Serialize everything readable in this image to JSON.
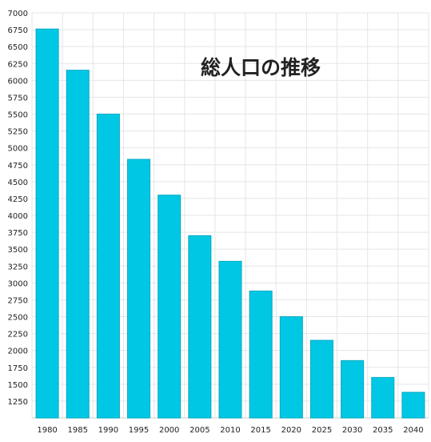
{
  "chart_data": {
    "type": "bar",
    "title": "総人口の推移",
    "xlabel": "",
    "ylabel": "",
    "categories": [
      "1980",
      "1985",
      "1990",
      "1995",
      "2000",
      "2005",
      "2010",
      "2015",
      "2020",
      "2025",
      "2030",
      "2035",
      "2040"
    ],
    "values": [
      6760,
      6150,
      5500,
      4830,
      4300,
      3700,
      3320,
      2880,
      2500,
      2150,
      1850,
      1600,
      1380
    ],
    "ylim": [
      1000,
      7000
    ],
    "yticks": [
      1250,
      1500,
      1750,
      2000,
      2250,
      2500,
      2750,
      3000,
      3250,
      3500,
      3750,
      4000,
      4250,
      4500,
      4750,
      5000,
      5250,
      5500,
      5750,
      6000,
      6250,
      6500,
      6750,
      7000
    ],
    "grid": true,
    "legend": "none",
    "colors": {
      "bar": "#00c8e4",
      "bar_edge": "#00a9c2",
      "grid": "#e5e5e5",
      "text": "#222222"
    }
  }
}
